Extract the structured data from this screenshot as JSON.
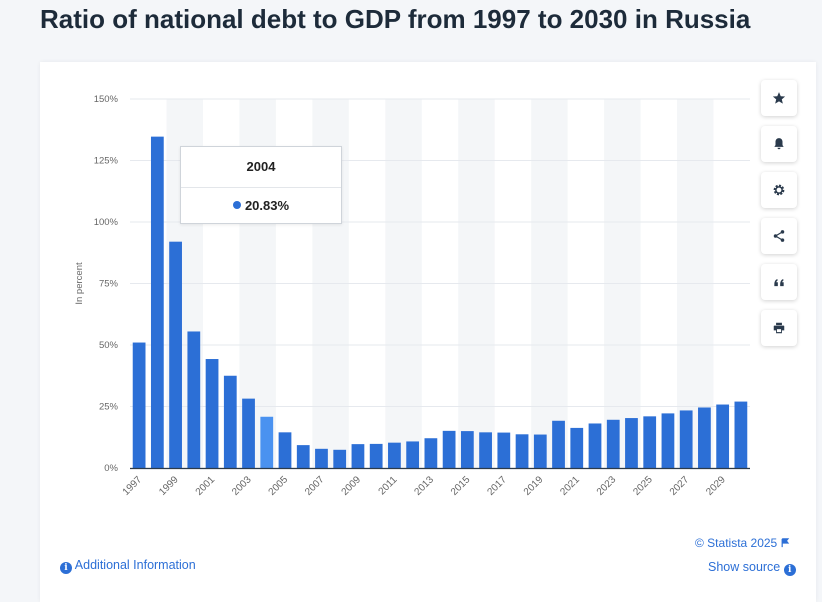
{
  "page": {
    "title": "Ratio of national debt to GDP from 1997 to 2030 in Russia"
  },
  "chart_data": {
    "type": "bar",
    "categories": [
      "1997",
      "1998",
      "1999",
      "2000",
      "2001",
      "2002",
      "2003",
      "2004",
      "2005",
      "2006",
      "2007",
      "2008",
      "2009",
      "2010",
      "2011",
      "2012",
      "2013",
      "2014",
      "2015",
      "2016",
      "2017",
      "2018",
      "2019",
      "2020",
      "2021",
      "2022",
      "2023",
      "2024",
      "2025",
      "2026",
      "2027",
      "2028",
      "2029",
      "2030"
    ],
    "values": [
      51,
      134.7,
      92,
      55.5,
      44.3,
      37.5,
      28.2,
      20.83,
      14.5,
      9.3,
      7.8,
      7.4,
      9.7,
      9.8,
      10.3,
      10.8,
      12.1,
      15.1,
      15,
      14.5,
      14.4,
      13.7,
      13.6,
      19.2,
      16.3,
      18.1,
      19.6,
      20.3,
      21,
      22.2,
      23.4,
      24.6,
      25.8,
      27
    ],
    "ylabel": "In percent",
    "ylim": [
      0,
      150
    ],
    "yticks": [
      "0%",
      "25%",
      "50%",
      "75%",
      "100%",
      "125%",
      "150%"
    ],
    "ytick_values": [
      0,
      25,
      50,
      75,
      100,
      125,
      150
    ],
    "xtick_labels": [
      "1997",
      "1999",
      "2001",
      "2003",
      "2005",
      "2007",
      "2009",
      "2011",
      "2013",
      "2015",
      "2017",
      "2019",
      "2021",
      "2023",
      "2025",
      "2027",
      "2029"
    ],
    "grid": true,
    "highlighted_category": "2004",
    "tooltip": {
      "category": "2004",
      "value_label": "20.83%"
    },
    "colors": {
      "bar": "#2c6fd6",
      "bar_highlight": "#4a92f0",
      "grid": "#e6e9ee",
      "band": "#f4f6f8",
      "axis_text": "#666666"
    }
  },
  "toolbar": {
    "icons": [
      "star-icon",
      "bell-icon",
      "gear-icon",
      "share-icon",
      "quote-icon",
      "print-icon"
    ]
  },
  "footer": {
    "additional_info": "Additional Information",
    "copyright": "© Statista 2025",
    "show_source": "Show source"
  }
}
